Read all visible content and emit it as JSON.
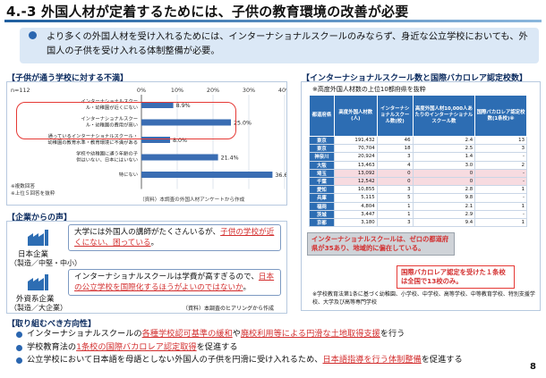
{
  "header": {
    "title": "4.-3 外国人材が定着するためには、子供の教育環境の改善が必要"
  },
  "intro": {
    "line1": "より多くの外国人材を受け入れるためには、インターナショナルスクールのみならず、身近な公立学校においても、外国人の子供を受け入れる体制整備が必要。"
  },
  "survey": {
    "heading": "【子供が通う学校に対する不満】",
    "n_label": "n=112",
    "ticks": [
      "0%",
      "10%",
      "20%",
      "30%",
      "40%"
    ],
    "items": [
      {
        "label": "インターナショナルスクール・幼稚園が近くにない",
        "value_text": "8.9%"
      },
      {
        "label": "インターナショナルスクール・幼稚園の費用が高い",
        "value_text": "25.0%"
      },
      {
        "label": "通っているインターナショナルスクール・幼稚園の教育水準・教育環境に不満がある",
        "value_text": "8.0%"
      },
      {
        "label": "学校や幼稚園に通う年齢の子供はいない、日本にはいない",
        "value_text": "21.4%"
      },
      {
        "label": "特にない",
        "value_text": "36.6%"
      }
    ],
    "notes": [
      "※複数回答",
      "※上位５回答を抜粋"
    ],
    "source": "（資料）本調査の外国人材アンケートから作成"
  },
  "chart_data": {
    "type": "bar",
    "categories": [
      "インターナショナルスクール・幼稚園が近くにない",
      "インターナショナルスクール・幼稚園の費用が高い",
      "通っているインターナショナルスクール・幼稚園の教育水準・教育環境に不満がある",
      "学校や幼稚園に通う年齢の子供はいない、日本にはいない",
      "特にない"
    ],
    "values": [
      8.9,
      25.0,
      8.0,
      21.4,
      36.6
    ],
    "xlim": [
      0,
      40
    ],
    "orientation": "horizontal",
    "grid": true
  },
  "table": {
    "heading": "【インターナショナルスクール数と国際バカロレア認定校数】",
    "subheading": "※高度外国人材数の上位10都府県を抜粋",
    "columns": [
      "都道府県",
      "高度外国人材数(人)",
      "インターナショナルスクール数(校)",
      "高度外国人材10,000人あたりのインターナショナルスクール数",
      "国際バカロレア認定校数(1条校)※"
    ],
    "rows": [
      [
        "東京",
        "191,432",
        "46",
        "2.4",
        "13"
      ],
      [
        "東京",
        "70,704",
        "18",
        "2.5",
        "3"
      ],
      [
        "神奈川",
        "20,924",
        "3",
        "1.4",
        "-"
      ],
      [
        "大阪",
        "13,463",
        "4",
        "3.0",
        "2"
      ],
      [
        "埼玉",
        "13,092",
        "0",
        "0",
        "-"
      ],
      [
        "千葉",
        "12,542",
        "0",
        "0",
        "-"
      ],
      [
        "愛知",
        "10,855",
        "3",
        "2.8",
        "1"
      ],
      [
        "兵庫",
        "5,115",
        "5",
        "9.8",
        "-"
      ],
      [
        "福岡",
        "4,804",
        "1",
        "2.1",
        "1"
      ],
      [
        "茨城",
        "3,447",
        "1",
        "2.9",
        "-"
      ],
      [
        "京都",
        "3,180",
        "3",
        "9.4",
        "1"
      ]
    ],
    "callout1": "インターナショナルスクールは、ゼロの都道府県が35あり、地域的に偏在している。",
    "callout2": "国際バカロレア認定を受けた１条校は全国で13校のみ。",
    "footnote": "※学校教育法第1条に基づく幼稚園、小学校、中学校、高等学校、中等教育学校、特別支援学校、大学及び高等専門学校"
  },
  "voices": {
    "heading": "【企業からの声】",
    "company1": {
      "name": "日本企業",
      "sub": "（製造／中堅・中小）",
      "quote_pre": "大学には外国人の講師がたくさんいるが、",
      "quote_emph": "子供の学校が近くにない、困っている",
      "quote_post": "。"
    },
    "company2": {
      "name": "外資系企業",
      "sub": "（製造／大企業）",
      "quote_pre": "インターナショナルスクールは学費が高すぎるので、",
      "quote_emph": "日本の公立学校を国際化するほうがよいのではないか",
      "quote_post": "。"
    },
    "source": "（資料）本調査のヒアリングから作成"
  },
  "direction": {
    "heading": "【取り組むべき方向性】",
    "items": [
      {
        "pre": "インターナショナルスクールの",
        "e1": "各種学校認可基準の緩和",
        "mid": "や",
        "e2": "廃校利用等による円滑な土地取得支援",
        "post": "を行う"
      },
      {
        "pre": "学校教育法の",
        "e1": "1条校の国際バカロレア認定取得",
        "mid": "",
        "e2": "",
        "post": "を促進する"
      },
      {
        "pre": "公立学校において日本語を母語としない外国人の子供を円滑に受け入れるため、",
        "e1": "日本語指導を行う体制整備",
        "mid": "",
        "e2": "",
        "post": "を促進する"
      }
    ]
  },
  "page_number": "8",
  "colors": {
    "accent": "#2d6db3",
    "highlight": "#e53935",
    "intro_bg": "#dbe8f6"
  }
}
